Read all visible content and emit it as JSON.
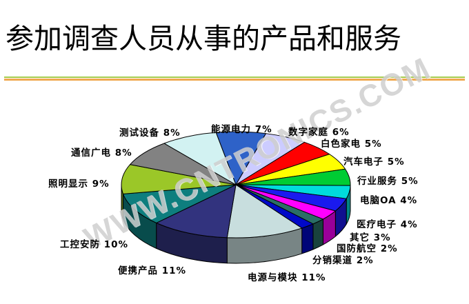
{
  "header": {
    "title": "参加调查人员从事的产品和服务",
    "divider_top_color": "#A4CC4A",
    "divider_bottom_color": "#F0A84E"
  },
  "watermark": {
    "text": "WWW.CNTRONICS.COM",
    "color": "#CFCFCF"
  },
  "chart_data": {
    "type": "pie",
    "is_3d": true,
    "title": "参加调查人员从事的产品和服务",
    "unit": "%",
    "start_angle_deg": -100,
    "direction": "clockwise",
    "legend_position": "none",
    "label_format": "name value%",
    "slices": [
      {
        "label": "能源电力",
        "value": 7,
        "color": "#2E62C8"
      },
      {
        "label": "数字家庭",
        "value": 6,
        "color": "#CCCCFF"
      },
      {
        "label": "白色家电",
        "value": 5,
        "color": "#FF0000"
      },
      {
        "label": "汽车电子",
        "value": 5,
        "color": "#FFFF00"
      },
      {
        "label": "行业服务",
        "value": 5,
        "color": "#00CC33"
      },
      {
        "label": "电脑OA",
        "value": 4,
        "color": "#00DCDC"
      },
      {
        "label": "医疗电子",
        "value": 4,
        "color": "#1A1AEE"
      },
      {
        "label": "其它",
        "value": 3,
        "color": "#FF00FF"
      },
      {
        "label": "国防航空",
        "value": 2,
        "color": "#2A6E66"
      },
      {
        "label": "分销渠道",
        "value": 2,
        "color": "#0008C8"
      },
      {
        "label": "电源与模块",
        "value": 11,
        "color": "#C8DEDE"
      },
      {
        "label": "便携产品",
        "value": 11,
        "color": "#32337E"
      },
      {
        "label": "工控安防",
        "value": 10,
        "color": "#0E7E7E"
      },
      {
        "label": "照明显示",
        "value": 9,
        "color": "#9BC728"
      },
      {
        "label": "通信广电",
        "value": 8,
        "color": "#828282"
      },
      {
        "label": "测试设备",
        "value": 8,
        "color": "#D2F2F2"
      }
    ]
  }
}
